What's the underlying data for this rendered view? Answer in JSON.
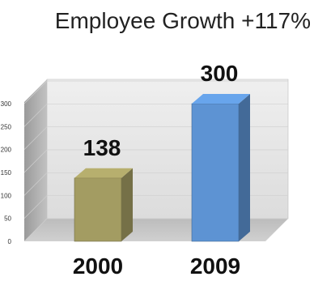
{
  "chart_data": {
    "type": "bar",
    "title": "Employee Growth +117%",
    "categories": [
      "2000",
      "2009"
    ],
    "values": [
      138,
      300
    ],
    "data_labels": [
      "138",
      "300"
    ],
    "ylim": [
      0,
      300
    ],
    "yticks": [
      "0",
      "50",
      "100",
      "150",
      "200",
      "250",
      "300"
    ],
    "xlabel": "",
    "ylabel": "",
    "grid": true,
    "legend": "none",
    "colors": {
      "bar_2000": "#a39c62",
      "bar_2009": "#5d93d3",
      "wall": "#e4e4e4",
      "floor": "#c4c4c4",
      "side_wall": "#b0b0b0"
    }
  }
}
